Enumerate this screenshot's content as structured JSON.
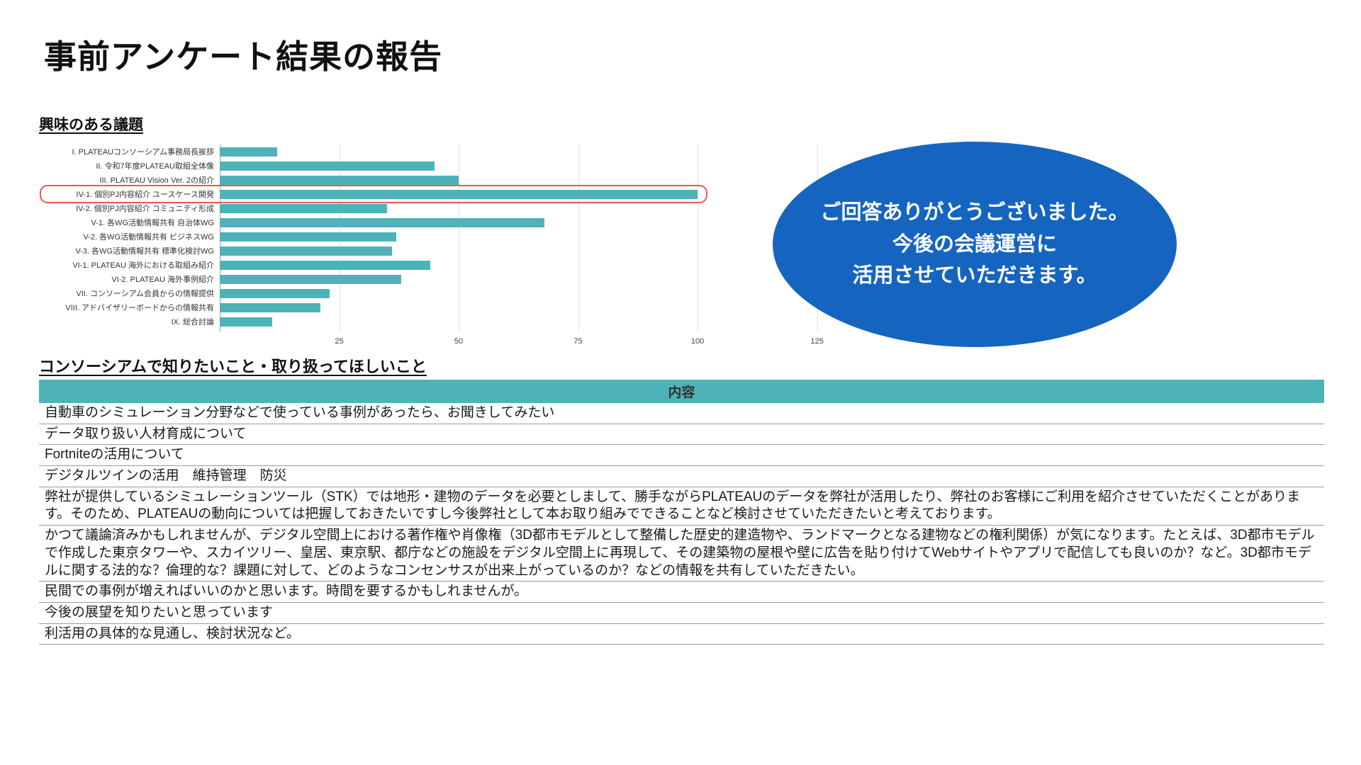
{
  "page": {
    "title": "事前アンケート結果の報告"
  },
  "sections": {
    "chart_heading": "興味のある議題",
    "table_heading": "コンソーシアムで知りたいこと・取り扱ってほしいこと"
  },
  "chart_data": {
    "type": "bar",
    "orientation": "horizontal",
    "title": "興味のある議題",
    "categories": [
      "I. PLATEAUコンソーシアム事務局長挨拶",
      "II. 令和7年度PLATEAU取組全体像",
      "III. PLATEAU Vision Ver. 2の紹介",
      "IV-1. 個別PJ内容紹介 ユースケース開発",
      "IV-2. 個別PJ内容紹介 コミュニティ形成",
      "V-1. 各WG活動情報共有 自治体WG",
      "V-2. 各WG活動情報共有 ビジネスWG",
      "V-3. 各WG活動情報共有 標準化検討WG",
      "VI-1. PLATEAU 海外における取組み紹介",
      "VI-2. PLATEAU 海外事例紹介",
      "VII. コンソーシアム会員からの情報提供",
      "VIII. アドバイザリーボードからの情報共有",
      "IX. 総合討論"
    ],
    "values": [
      12,
      45,
      50,
      100,
      35,
      68,
      37,
      36,
      44,
      38,
      23,
      21,
      11
    ],
    "xticks": [
      25,
      50,
      75,
      100,
      125
    ],
    "xlim": [
      0,
      135
    ],
    "grid": true,
    "bar_color": "#4DB3B8",
    "highlight_index": 3,
    "highlight_color": "#E25B55"
  },
  "callout": {
    "lines": [
      "ご回答ありがとうございました。",
      "今後の会議運営に",
      "活用させていただきます。"
    ],
    "bg_color": "#1565C0",
    "text_color": "#FFFFFF"
  },
  "table": {
    "header": "内容",
    "header_bg": "#4DB3B8",
    "rows": [
      "自動車のシミュレーション分野などで使っている事例があったら、お聞きしてみたい",
      "データ取り扱い人材育成について",
      "Fortniteの活用について",
      "デジタルツインの活用　維持管理　防災",
      "弊社が提供しているシミュレーションツール（STK）では地形・建物のデータを必要としまして、勝手ながらPLATEAUのデータを弊社が活用したり、弊社のお客様にご利用を紹介させていただくことがあります。そのため、PLATEAUの動向については把握しておきたいですし今後弊社として本お取り組みでできることなど検討させていただきたいと考えております。",
      "かつて議論済みかもしれませんが、デジタル空間上における著作権や肖像権（3D都市モデルとして整備した歴史的建造物や、ランドマークとなる建物などの権利関係）が気になります。たとえば、3D都市モデルで作成した東京タワーや、スカイツリー、皇居、東京駅、都庁などの施設をデジタル空間上に再現して、その建築物の屋根や壁に広告を貼り付けてWebサイトやアプリで配信しても良いのか？など。3D都市モデルに関する法的な？倫理的な？課題に対して、どのようなコンセンサスが出来上がっているのか？などの情報を共有していただきたい。",
      "民間での事例が増えればいいのかと思います。時間を要するかもしれませんが。",
      "今後の展望を知りたいと思っています",
      "利活用の具体的な見通し、検討状況など。"
    ]
  }
}
